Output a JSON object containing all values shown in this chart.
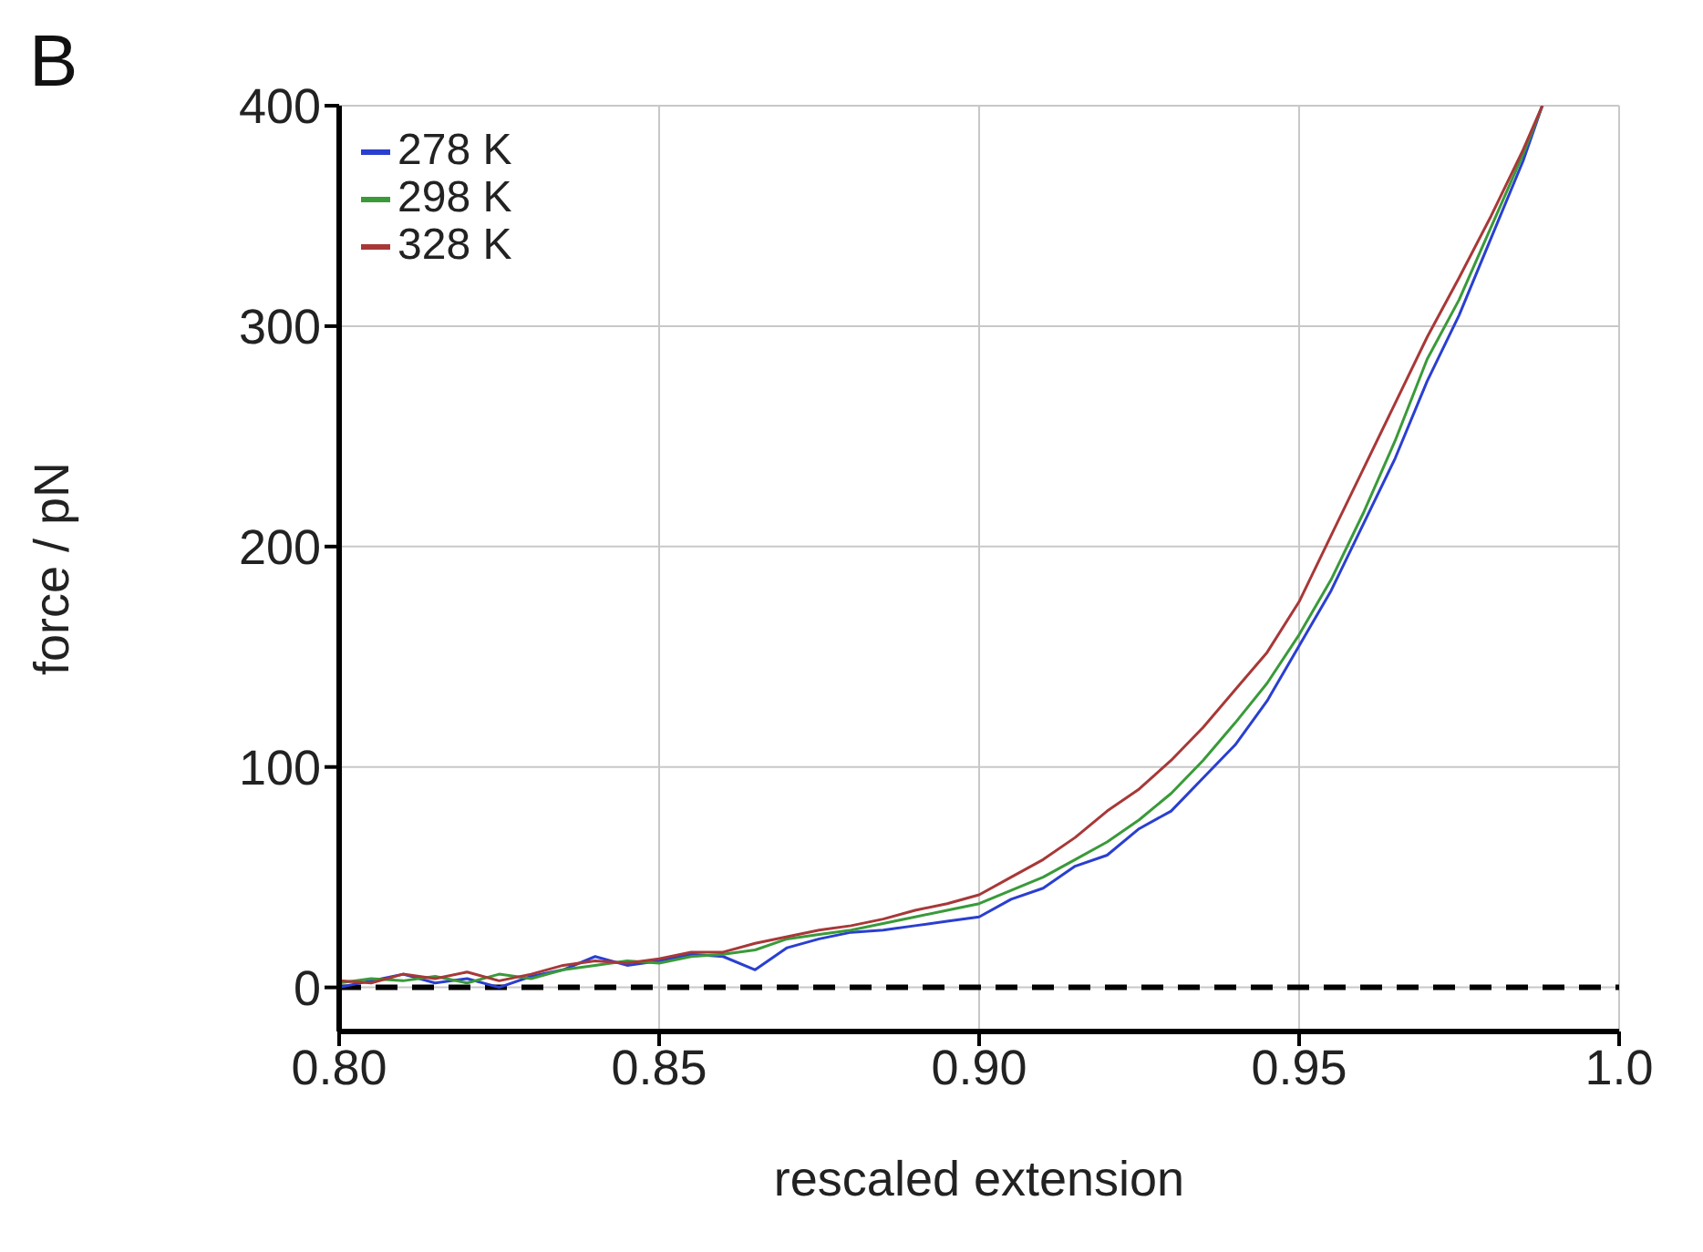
{
  "chart_data": {
    "type": "line",
    "xlabel": "rescaled extension",
    "ylabel": "force / pN",
    "annotations": [
      "B"
    ],
    "x": [
      0.8,
      0.805,
      0.81,
      0.815,
      0.82,
      0.825,
      0.83,
      0.835,
      0.84,
      0.845,
      0.85,
      0.855,
      0.86,
      0.865,
      0.87,
      0.875,
      0.88,
      0.885,
      0.89,
      0.895,
      0.9,
      0.905,
      0.91,
      0.915,
      0.92,
      0.925,
      0.93,
      0.935,
      0.94,
      0.945,
      0.95,
      0.955,
      0.96,
      0.965,
      0.97,
      0.975,
      0.98,
      0.985,
      0.988
    ],
    "series": [
      {
        "name": "278 K",
        "color": "#2a3fd0",
        "values": [
          0,
          3,
          6,
          2,
          4,
          0,
          5,
          8,
          14,
          10,
          12,
          15,
          14,
          8,
          18,
          22,
          25,
          26,
          28,
          30,
          32,
          40,
          45,
          55,
          60,
          72,
          80,
          95,
          110,
          130,
          155,
          180,
          210,
          240,
          275,
          305,
          340,
          375,
          400
        ]
      },
      {
        "name": "298 K",
        "color": "#3a9a3a",
        "values": [
          2,
          4,
          3,
          5,
          2,
          6,
          4,
          8,
          10,
          12,
          11,
          14,
          15,
          17,
          22,
          24,
          26,
          29,
          32,
          35,
          38,
          44,
          50,
          58,
          66,
          76,
          88,
          103,
          120,
          138,
          160,
          185,
          215,
          248,
          285,
          312,
          345,
          378,
          400
        ]
      },
      {
        "name": "328 K",
        "color": "#a83838",
        "values": [
          3,
          2,
          6,
          4,
          7,
          3,
          6,
          10,
          12,
          11,
          13,
          16,
          16,
          20,
          23,
          26,
          28,
          31,
          35,
          38,
          42,
          50,
          58,
          68,
          80,
          90,
          103,
          118,
          135,
          152,
          175,
          205,
          235,
          265,
          295,
          322,
          350,
          380,
          400
        ]
      }
    ],
    "xlim": [
      0.8,
      1.0
    ],
    "xticks": [
      {
        "value": 0.8,
        "label": "0.80"
      },
      0.85,
      {
        "value": 0.9,
        "label": "0.90"
      },
      0.95,
      {
        "value": 1.0,
        "label": "1.0"
      }
    ],
    "ylim": [
      -20,
      400
    ],
    "yticks": [
      0,
      100,
      200,
      300,
      400
    ],
    "ref_lines": [
      {
        "axis": "y",
        "value": 0,
        "color": "#000000",
        "line_style": "dashed"
      }
    ],
    "grid": true,
    "legend": "top left",
    "marker": "none",
    "line_style": "solid"
  }
}
